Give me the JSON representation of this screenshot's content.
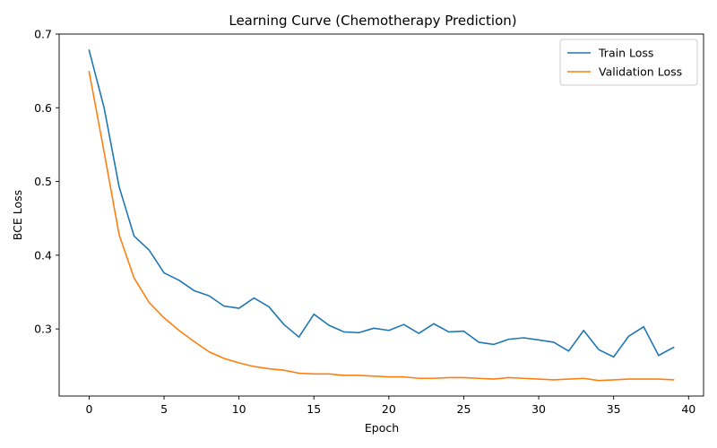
{
  "chart_data": {
    "type": "line",
    "title": "Learning Curve (Chemotherapy Prediction)",
    "xlabel": "Epoch",
    "ylabel": "BCE Loss",
    "xlim": [
      -2,
      41
    ],
    "ylim": [
      0.209,
      0.7
    ],
    "xticks": [
      0,
      5,
      10,
      15,
      20,
      25,
      30,
      35,
      40
    ],
    "yticks": [
      0.3,
      0.4,
      0.5,
      0.6,
      0.7
    ],
    "grid": false,
    "legend_position": "top-right",
    "x": [
      0,
      1,
      2,
      3,
      4,
      5,
      6,
      7,
      8,
      9,
      10,
      11,
      12,
      13,
      14,
      15,
      16,
      17,
      18,
      19,
      20,
      21,
      22,
      23,
      24,
      25,
      26,
      27,
      28,
      29,
      30,
      31,
      32,
      33,
      34,
      35,
      36,
      37,
      38,
      39
    ],
    "series": [
      {
        "name": "Train Loss",
        "color": "#1f77b4",
        "values": [
          0.678,
          0.6,
          0.493,
          0.426,
          0.407,
          0.376,
          0.366,
          0.352,
          0.345,
          0.331,
          0.328,
          0.342,
          0.33,
          0.306,
          0.289,
          0.32,
          0.305,
          0.296,
          0.295,
          0.301,
          0.298,
          0.306,
          0.294,
          0.307,
          0.296,
          0.297,
          0.282,
          0.279,
          0.286,
          0.288,
          0.285,
          0.282,
          0.27,
          0.298,
          0.272,
          0.262,
          0.29,
          0.303,
          0.264,
          0.275
        ]
      },
      {
        "name": "Validation Loss",
        "color": "#ff7f0e",
        "values": [
          0.649,
          0.54,
          0.428,
          0.369,
          0.336,
          0.315,
          0.298,
          0.283,
          0.269,
          0.26,
          0.254,
          0.249,
          0.246,
          0.244,
          0.24,
          0.239,
          0.239,
          0.237,
          0.237,
          0.236,
          0.235,
          0.235,
          0.233,
          0.233,
          0.234,
          0.234,
          0.233,
          0.232,
          0.234,
          0.233,
          0.232,
          0.231,
          0.232,
          0.233,
          0.23,
          0.231,
          0.232,
          0.232,
          0.232,
          0.231
        ]
      }
    ]
  }
}
